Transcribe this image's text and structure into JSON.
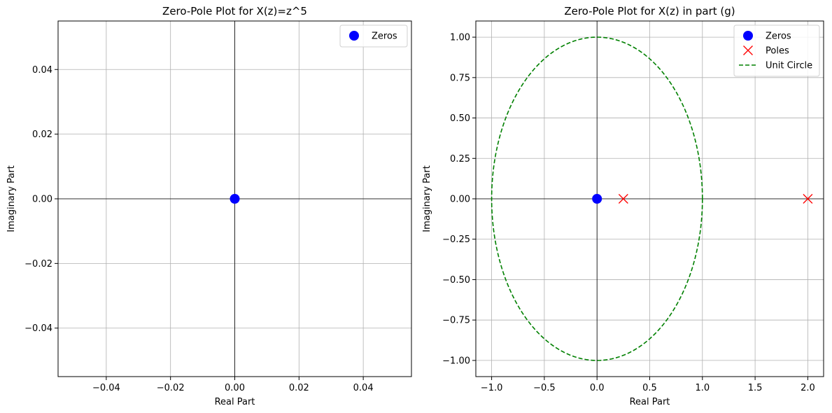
{
  "chart_data": [
    {
      "type": "scatter",
      "title": "Zero-Pole Plot for X(z)=z^5",
      "xlabel": "Real Part",
      "ylabel": "Imaginary Part",
      "xlim": [
        -0.055,
        0.055
      ],
      "ylim": [
        -0.055,
        0.055
      ],
      "xticks": [
        -0.04,
        -0.02,
        0.0,
        0.02,
        0.04
      ],
      "yticks": [
        -0.04,
        -0.02,
        0.0,
        0.02,
        0.04
      ],
      "xtick_labels": [
        "−0.04",
        "−0.02",
        "0.00",
        "0.02",
        "0.04"
      ],
      "ytick_labels": [
        "−0.04",
        "−0.02",
        "0.00",
        "0.02",
        "0.04"
      ],
      "grid": true,
      "legend_position": "top-right",
      "series": [
        {
          "name": "Zeros",
          "marker": "circle",
          "color": "#0000ff",
          "points": [
            [
              0,
              0
            ]
          ]
        }
      ]
    },
    {
      "type": "scatter",
      "title": "Zero-Pole Plot for X(z) in part (g)",
      "xlabel": "Real Part",
      "ylabel": "Imaginary Part",
      "xlim": [
        -1.15,
        2.15
      ],
      "ylim": [
        -1.1,
        1.1
      ],
      "xticks": [
        -1.0,
        -0.5,
        0.0,
        0.5,
        1.0,
        1.5,
        2.0
      ],
      "yticks": [
        -1.0,
        -0.75,
        -0.5,
        -0.25,
        0.0,
        0.25,
        0.5,
        0.75,
        1.0
      ],
      "xtick_labels": [
        "−1.0",
        "−0.5",
        "0.0",
        "0.5",
        "1.0",
        "1.5",
        "2.0"
      ],
      "ytick_labels": [
        "−1.00",
        "−0.75",
        "−0.50",
        "−0.25",
        "0.00",
        "0.25",
        "0.50",
        "0.75",
        "1.00"
      ],
      "grid": true,
      "legend_position": "top-right",
      "series": [
        {
          "name": "Zeros",
          "marker": "circle",
          "color": "#0000ff",
          "points": [
            [
              0,
              0
            ]
          ]
        },
        {
          "name": "Poles",
          "marker": "x",
          "color": "#ff0000",
          "points": [
            [
              0.25,
              0
            ],
            [
              2.0,
              0
            ]
          ]
        },
        {
          "name": "Unit Circle",
          "marker": "dashed-line",
          "color": "#008000",
          "curve": "unit-circle"
        }
      ]
    }
  ]
}
